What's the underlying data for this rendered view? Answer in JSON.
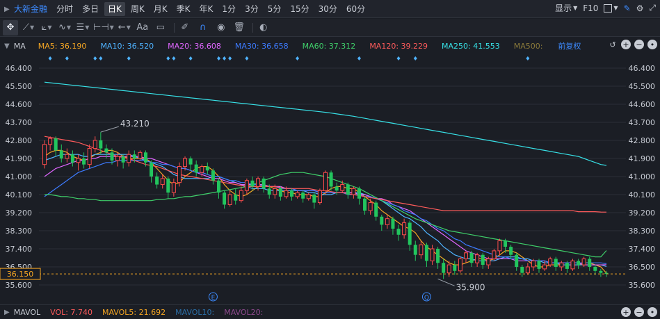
{
  "stock_name": "大新金融",
  "periods": [
    "分时",
    "多日",
    "日K",
    "周K",
    "月K",
    "季K",
    "年K",
    "1分",
    "3分",
    "5分",
    "15分",
    "30分",
    "60分"
  ],
  "active_period": "日K",
  "toolbar_right": {
    "display": "显示",
    "f10": "F10"
  },
  "indicator": {
    "title": "MA",
    "items": [
      {
        "label": "MA5: 36.190",
        "color": "#f5a623"
      },
      {
        "label": "MA10: 36.520",
        "color": "#4fb3ff"
      },
      {
        "label": "MA20: 36.608",
        "color": "#e066ff"
      },
      {
        "label": "MA30: 36.658",
        "color": "#3d7bff"
      },
      {
        "label": "MA60: 37.312",
        "color": "#3fcf6a"
      },
      {
        "label": "MA120: 39.229",
        "color": "#ff5b5b"
      },
      {
        "label": "MA250: 41.553",
        "color": "#37e0e6"
      },
      {
        "label": "MA500:",
        "color": "#8a7a3a"
      }
    ],
    "fq": "前复权"
  },
  "volume_bar": {
    "title": "MAVOL",
    "items": [
      {
        "label": "VOL: 7.740",
        "color": "#ff5b5b"
      },
      {
        "label": "MAVOL5: 21.692",
        "color": "#f5a623"
      },
      {
        "label": "MAVOL10:",
        "color": "#2b6fa8"
      },
      {
        "label": "MAVOL20:",
        "color": "#8e4a8e"
      }
    ]
  },
  "colors": {
    "up": "#ff4d4d",
    "down": "#22c55e",
    "grid": "#2b2f38",
    "axis_text": "#c8ccd4",
    "bg": "#1b1e25"
  },
  "chart_data": {
    "type": "candlestick",
    "y_ticks": [
      "46.400",
      "45.500",
      "44.600",
      "43.700",
      "42.800",
      "41.900",
      "41.000",
      "40.100",
      "39.200",
      "38.300",
      "37.400",
      "36.500",
      "35.600"
    ],
    "ylim": [
      35.6,
      46.4
    ],
    "current_price_label": "36.150",
    "current_price": 36.15,
    "max_label": "43.210",
    "max_index": 10,
    "max_value": 43.21,
    "min_label": "35.900",
    "min_index": 70,
    "min_value": 35.9,
    "event_markers": [
      {
        "label": "E",
        "index": 30
      },
      {
        "label": "Q",
        "index": 68
      }
    ],
    "dividend_marker_indices": [
      1,
      4,
      9,
      10,
      15,
      22,
      23,
      26,
      31,
      32,
      33,
      36,
      45,
      56,
      63,
      66,
      86
    ],
    "candles": [
      [
        41.6,
        42.6,
        42.8,
        41.4
      ],
      [
        42.6,
        42.9,
        43.0,
        42.3
      ],
      [
        42.9,
        42.3,
        43.0,
        42.0
      ],
      [
        42.3,
        41.9,
        42.6,
        41.7
      ],
      [
        41.9,
        42.1,
        42.4,
        41.7
      ],
      [
        42.1,
        41.7,
        42.3,
        41.5
      ],
      [
        41.7,
        41.9,
        42.1,
        41.3
      ],
      [
        41.9,
        41.6,
        42.2,
        41.4
      ],
      [
        41.6,
        42.4,
        42.6,
        41.4
      ],
      [
        42.4,
        42.8,
        43.0,
        42.2
      ],
      [
        42.8,
        42.4,
        43.21,
        42.1
      ],
      [
        42.4,
        42.2,
        42.6,
        41.9
      ],
      [
        42.2,
        41.8,
        42.4,
        41.6
      ],
      [
        41.8,
        42.0,
        42.2,
        41.5
      ],
      [
        42.0,
        41.7,
        42.1,
        41.4
      ],
      [
        41.7,
        42.1,
        42.3,
        41.5
      ],
      [
        42.1,
        41.9,
        42.3,
        41.7
      ],
      [
        41.9,
        42.2,
        42.3,
        41.8
      ],
      [
        42.2,
        41.7,
        42.3,
        41.5
      ],
      [
        41.7,
        41.0,
        41.8,
        40.7
      ],
      [
        41.0,
        40.6,
        41.2,
        40.4
      ],
      [
        40.6,
        40.9,
        41.1,
        40.4
      ],
      [
        40.9,
        40.2,
        41.0,
        39.9
      ],
      [
        40.2,
        40.7,
        40.9,
        40.0
      ],
      [
        40.7,
        41.5,
        41.7,
        40.5
      ],
      [
        41.5,
        41.9,
        42.0,
        41.3
      ],
      [
        41.9,
        41.6,
        42.0,
        41.3
      ],
      [
        41.6,
        41.2,
        41.8,
        41.0
      ],
      [
        41.2,
        41.5,
        41.6,
        41.0
      ],
      [
        41.5,
        41.3,
        41.7,
        41.1
      ],
      [
        41.3,
        40.8,
        41.4,
        40.6
      ],
      [
        40.8,
        40.2,
        40.9,
        39.9
      ],
      [
        40.2,
        39.6,
        40.3,
        39.4
      ],
      [
        39.6,
        40.1,
        40.3,
        39.5
      ],
      [
        40.1,
        39.8,
        40.4,
        39.6
      ],
      [
        39.8,
        40.3,
        40.5,
        39.7
      ],
      [
        40.3,
        40.8,
        40.9,
        40.1
      ],
      [
        40.8,
        40.5,
        41.0,
        40.3
      ],
      [
        40.5,
        40.9,
        41.0,
        40.3
      ],
      [
        40.9,
        40.4,
        41.0,
        40.2
      ],
      [
        40.4,
        40.1,
        40.6,
        39.9
      ],
      [
        40.1,
        40.4,
        40.6,
        39.9
      ],
      [
        40.4,
        40.0,
        40.5,
        39.8
      ],
      [
        40.0,
        40.3,
        40.5,
        39.9
      ],
      [
        40.3,
        40.0,
        40.4,
        39.8
      ],
      [
        40.0,
        40.2,
        40.3,
        39.9
      ],
      [
        40.2,
        39.9,
        40.3,
        39.7
      ],
      [
        39.9,
        40.1,
        40.2,
        39.8
      ],
      [
        40.1,
        39.7,
        40.2,
        39.4
      ],
      [
        39.7,
        40.3,
        40.4,
        39.6
      ],
      [
        40.3,
        41.2,
        41.3,
        40.1
      ],
      [
        41.2,
        40.5,
        41.3,
        40.3
      ],
      [
        40.5,
        40.3,
        40.7,
        40.1
      ],
      [
        40.3,
        40.6,
        40.8,
        40.2
      ],
      [
        40.6,
        40.1,
        40.7,
        39.9
      ],
      [
        40.1,
        40.4,
        40.5,
        39.9
      ],
      [
        40.4,
        39.9,
        40.5,
        39.6
      ],
      [
        39.9,
        39.3,
        40.0,
        39.1
      ],
      [
        39.3,
        39.7,
        39.9,
        39.1
      ],
      [
        39.7,
        39.0,
        39.8,
        38.8
      ],
      [
        39.0,
        38.6,
        39.1,
        38.3
      ],
      [
        38.6,
        38.9,
        39.1,
        38.4
      ],
      [
        38.9,
        38.4,
        39.0,
        38.1
      ],
      [
        38.4,
        38.1,
        38.6,
        37.8
      ],
      [
        38.1,
        38.7,
        38.9,
        37.9
      ],
      [
        38.7,
        37.6,
        38.8,
        37.3
      ],
      [
        37.6,
        37.1,
        37.8,
        36.8
      ],
      [
        37.1,
        37.6,
        37.8,
        36.9
      ],
      [
        37.6,
        36.8,
        37.7,
        36.5
      ],
      [
        36.8,
        37.4,
        37.6,
        36.6
      ],
      [
        37.4,
        36.7,
        37.5,
        36.4
      ],
      [
        36.7,
        36.2,
        36.9,
        35.9
      ],
      [
        36.2,
        36.6,
        36.8,
        36.0
      ],
      [
        36.6,
        36.3,
        36.8,
        36.1
      ],
      [
        36.3,
        36.9,
        37.0,
        36.2
      ],
      [
        36.9,
        37.2,
        37.3,
        36.7
      ],
      [
        37.2,
        36.7,
        37.3,
        36.5
      ],
      [
        36.7,
        37.1,
        37.2,
        36.5
      ],
      [
        37.1,
        36.6,
        37.2,
        36.4
      ],
      [
        36.6,
        36.9,
        37.0,
        36.4
      ],
      [
        36.9,
        37.3,
        37.4,
        36.8
      ],
      [
        37.3,
        37.8,
        37.9,
        37.1
      ],
      [
        37.8,
        37.5,
        37.9,
        37.2
      ],
      [
        37.5,
        37.1,
        37.6,
        36.9
      ],
      [
        37.1,
        36.5,
        37.2,
        36.3
      ],
      [
        36.5,
        36.2,
        36.6,
        36.0
      ],
      [
        36.2,
        36.5,
        36.7,
        36.1
      ],
      [
        36.5,
        36.8,
        36.9,
        36.3
      ],
      [
        36.8,
        36.4,
        36.9,
        36.2
      ],
      [
        36.4,
        36.6,
        36.8,
        36.3
      ],
      [
        36.6,
        36.9,
        37.0,
        36.5
      ],
      [
        36.9,
        36.5,
        37.0,
        36.3
      ],
      [
        36.5,
        36.7,
        36.8,
        36.3
      ],
      [
        36.7,
        36.4,
        36.8,
        36.2
      ],
      [
        36.4,
        36.8,
        36.9,
        36.3
      ],
      [
        36.8,
        36.6,
        36.9,
        36.4
      ],
      [
        36.6,
        36.9,
        37.0,
        36.5
      ],
      [
        36.9,
        36.5,
        37.0,
        36.3
      ],
      [
        36.5,
        36.3,
        36.6,
        36.1
      ],
      [
        36.3,
        36.2,
        36.4,
        36.0
      ],
      [
        36.2,
        36.15,
        36.3,
        36.0
      ]
    ],
    "ma_lines": {
      "MA5": [
        42.0,
        42.2,
        42.3,
        42.3,
        42.2,
        42.0,
        41.9,
        41.8,
        41.9,
        42.1,
        42.2,
        42.3,
        42.3,
        42.2,
        42.0,
        41.9,
        41.9,
        41.9,
        41.9,
        41.7,
        41.4,
        41.1,
        40.8,
        40.6,
        40.7,
        41.0,
        41.2,
        41.4,
        41.5,
        41.5,
        41.3,
        41.0,
        40.6,
        40.3,
        40.1,
        40.0,
        40.1,
        40.3,
        40.5,
        40.6,
        40.5,
        40.4,
        40.3,
        40.2,
        40.2,
        40.1,
        40.1,
        40.1,
        40.0,
        40.0,
        40.2,
        40.4,
        40.5,
        40.5,
        40.4,
        40.4,
        40.2,
        40.0,
        39.8,
        39.6,
        39.3,
        39.1,
        38.9,
        38.7,
        38.5,
        38.4,
        38.2,
        37.8,
        37.5,
        37.3,
        37.1,
        36.9,
        36.7,
        36.6,
        36.6,
        36.7,
        36.8,
        36.9,
        36.9,
        36.8,
        36.9,
        37.1,
        37.3,
        37.3,
        37.2,
        37.0,
        36.8,
        36.6,
        36.5,
        36.5,
        36.6,
        36.6,
        36.6,
        36.6,
        36.6,
        36.6,
        36.7,
        36.7,
        36.6,
        36.5,
        36.19
      ],
      "MA10": [
        41.8,
        41.9,
        42.0,
        42.1,
        42.1,
        42.1,
        42.1,
        42.0,
        42.0,
        42.1,
        42.1,
        42.1,
        42.1,
        42.1,
        42.1,
        42.1,
        42.0,
        41.9,
        41.8,
        41.7,
        41.6,
        41.5,
        41.3,
        41.1,
        41.0,
        40.9,
        40.9,
        40.9,
        40.9,
        40.9,
        41.0,
        41.0,
        40.9,
        40.8,
        40.7,
        40.6,
        40.5,
        40.4,
        40.4,
        40.4,
        40.3,
        40.3,
        40.3,
        40.3,
        40.3,
        40.3,
        40.3,
        40.2,
        40.2,
        40.1,
        40.1,
        40.1,
        40.2,
        40.2,
        40.2,
        40.2,
        40.2,
        40.1,
        40.0,
        39.9,
        39.8,
        39.6,
        39.4,
        39.2,
        39.0,
        38.9,
        38.7,
        38.5,
        38.2,
        38.0,
        37.8,
        37.5,
        37.3,
        37.1,
        37.0,
        36.9,
        36.9,
        36.8,
        36.8,
        36.8,
        36.8,
        36.9,
        37.0,
        37.0,
        37.0,
        36.9,
        36.9,
        36.8,
        36.8,
        36.7,
        36.7,
        36.7,
        36.6,
        36.6,
        36.6,
        36.6,
        36.6,
        36.6,
        36.6,
        36.6,
        36.52
      ],
      "MA20": [
        41.0,
        41.2,
        41.4,
        41.5,
        41.6,
        41.7,
        41.8,
        41.8,
        41.9,
        41.9,
        42.0,
        42.0,
        42.0,
        42.0,
        42.0,
        42.0,
        42.0,
        42.0,
        41.9,
        41.9,
        41.8,
        41.7,
        41.6,
        41.5,
        41.4,
        41.4,
        41.3,
        41.2,
        41.1,
        41.0,
        40.9,
        40.9,
        40.8,
        40.7,
        40.7,
        40.6,
        40.6,
        40.6,
        40.6,
        40.6,
        40.5,
        40.5,
        40.5,
        40.4,
        40.4,
        40.3,
        40.3,
        40.3,
        40.3,
        40.2,
        40.2,
        40.2,
        40.2,
        40.2,
        40.2,
        40.2,
        40.1,
        40.1,
        40.0,
        39.9,
        39.9,
        39.8,
        39.6,
        39.5,
        39.4,
        39.3,
        39.1,
        38.9,
        38.7,
        38.5,
        38.3,
        38.1,
        37.9,
        37.7,
        37.5,
        37.3,
        37.2,
        37.1,
        37.0,
        36.9,
        36.9,
        36.9,
        36.9,
        36.9,
        36.8,
        36.8,
        36.8,
        36.8,
        36.8,
        36.8,
        36.7,
        36.7,
        36.7,
        36.7,
        36.7,
        36.7,
        36.6,
        36.6,
        36.6,
        36.6,
        36.608
      ],
      "MA30": [
        40.0,
        40.2,
        40.4,
        40.6,
        40.8,
        41.0,
        41.2,
        41.3,
        41.4,
        41.5,
        41.6,
        41.7,
        41.7,
        41.8,
        41.8,
        41.8,
        41.8,
        41.8,
        41.8,
        41.7,
        41.7,
        41.6,
        41.6,
        41.5,
        41.4,
        41.4,
        41.3,
        41.2,
        41.2,
        41.1,
        41.0,
        41.0,
        40.9,
        40.8,
        40.8,
        40.7,
        40.7,
        40.6,
        40.6,
        40.5,
        40.5,
        40.5,
        40.4,
        40.4,
        40.4,
        40.3,
        40.3,
        40.3,
        40.3,
        40.2,
        40.2,
        40.2,
        40.2,
        40.2,
        40.1,
        40.1,
        40.1,
        40.0,
        40.0,
        39.9,
        39.8,
        39.7,
        39.6,
        39.5,
        39.3,
        39.2,
        39.1,
        38.9,
        38.8,
        38.6,
        38.4,
        38.3,
        38.1,
        37.9,
        37.8,
        37.6,
        37.5,
        37.4,
        37.3,
        37.2,
        37.1,
        37.0,
        37.0,
        36.9,
        36.9,
        36.9,
        36.8,
        36.8,
        36.8,
        36.8,
        36.7,
        36.7,
        36.7,
        36.7,
        36.7,
        36.7,
        36.7,
        36.7,
        36.7,
        36.7,
        36.658
      ],
      "MA60": [
        40.1,
        40.1,
        40.05,
        40.0,
        40.0,
        39.95,
        39.9,
        39.9,
        39.85,
        39.85,
        39.8,
        39.8,
        39.8,
        39.8,
        39.8,
        39.8,
        39.8,
        39.8,
        39.8,
        39.8,
        39.85,
        39.85,
        39.9,
        39.9,
        39.95,
        40.0,
        40.0,
        40.05,
        40.1,
        40.15,
        40.2,
        40.25,
        40.3,
        40.35,
        40.4,
        40.45,
        40.5,
        40.6,
        40.7,
        40.8,
        40.9,
        41.0,
        41.1,
        41.15,
        41.2,
        41.2,
        41.2,
        41.15,
        41.1,
        41.05,
        41.0,
        40.9,
        40.8,
        40.7,
        40.6,
        40.5,
        40.4,
        40.25,
        40.1,
        39.95,
        39.8,
        39.65,
        39.5,
        39.35,
        39.2,
        39.05,
        38.9,
        38.8,
        38.7,
        38.6,
        38.5,
        38.4,
        38.3,
        38.25,
        38.2,
        38.15,
        38.1,
        38.05,
        38.0,
        37.95,
        37.9,
        37.85,
        37.8,
        37.75,
        37.7,
        37.65,
        37.6,
        37.55,
        37.5,
        37.45,
        37.4,
        37.35,
        37.3,
        37.25,
        37.2,
        37.15,
        37.1,
        37.05,
        37.0,
        37.0,
        37.312
      ],
      "MA120": [
        43.0,
        42.95,
        42.9,
        42.85,
        42.8,
        42.75,
        42.7,
        42.6,
        42.5,
        42.4,
        42.3,
        42.2,
        42.1,
        42.0,
        41.95,
        41.9,
        41.8,
        41.7,
        41.6,
        41.55,
        41.5,
        41.4,
        41.3,
        41.2,
        41.1,
        41.05,
        41.0,
        40.95,
        40.9,
        40.85,
        40.8,
        40.75,
        40.7,
        40.65,
        40.6,
        40.55,
        40.5,
        40.5,
        40.5,
        40.5,
        40.5,
        40.5,
        40.45,
        40.4,
        40.4,
        40.4,
        40.4,
        40.4,
        40.35,
        40.3,
        40.3,
        40.25,
        40.2,
        40.2,
        40.15,
        40.1,
        40.05,
        40.0,
        39.95,
        39.9,
        39.85,
        39.8,
        39.75,
        39.7,
        39.65,
        39.6,
        39.55,
        39.5,
        39.45,
        39.4,
        39.35,
        39.3,
        39.3,
        39.3,
        39.3,
        39.3,
        39.3,
        39.3,
        39.3,
        39.3,
        39.3,
        39.3,
        39.3,
        39.3,
        39.3,
        39.3,
        39.3,
        39.3,
        39.3,
        39.3,
        39.3,
        39.3,
        39.3,
        39.3,
        39.3,
        39.25,
        39.25,
        39.25,
        39.25,
        39.23,
        39.229
      ],
      "MA250": [
        45.7,
        45.67,
        45.64,
        45.61,
        45.58,
        45.55,
        45.52,
        45.49,
        45.46,
        45.43,
        45.4,
        45.37,
        45.34,
        45.31,
        45.28,
        45.25,
        45.22,
        45.19,
        45.16,
        45.13,
        45.1,
        45.07,
        45.04,
        45.01,
        44.98,
        44.95,
        44.92,
        44.89,
        44.86,
        44.83,
        44.8,
        44.77,
        44.74,
        44.71,
        44.68,
        44.65,
        44.62,
        44.59,
        44.56,
        44.53,
        44.5,
        44.47,
        44.44,
        44.41,
        44.38,
        44.35,
        44.32,
        44.29,
        44.26,
        44.23,
        44.2,
        44.16,
        44.12,
        44.08,
        44.04,
        44.0,
        43.95,
        43.9,
        43.85,
        43.8,
        43.75,
        43.7,
        43.65,
        43.6,
        43.55,
        43.5,
        43.45,
        43.4,
        43.35,
        43.3,
        43.25,
        43.2,
        43.15,
        43.1,
        43.05,
        43.0,
        42.95,
        42.9,
        42.85,
        42.8,
        42.75,
        42.7,
        42.65,
        42.6,
        42.55,
        42.5,
        42.45,
        42.4,
        42.35,
        42.3,
        42.25,
        42.2,
        42.15,
        42.1,
        42.05,
        42.0,
        41.9,
        41.8,
        41.7,
        41.6,
        41.553
      ]
    }
  }
}
